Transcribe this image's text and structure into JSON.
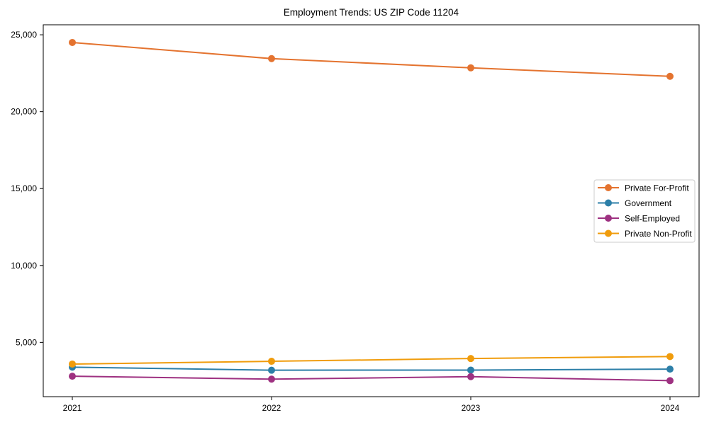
{
  "chart_data": {
    "type": "line",
    "title": "Employment Trends: US ZIP Code 11204",
    "xlabel": "",
    "ylabel": "",
    "grid": false,
    "legend_position": "center-right inside plot",
    "x": [
      2021,
      2022,
      2023,
      2024
    ],
    "x_tick_labels": [
      "2021",
      "2022",
      "2023",
      "2024"
    ],
    "y_ticks": [
      5000,
      10000,
      15000,
      20000,
      25000
    ],
    "y_tick_labels": [
      "5,000",
      "10,000",
      "15,000",
      "20,000",
      "25,000"
    ],
    "ylim": [
      1470,
      25650
    ],
    "series": [
      {
        "name": "Private For-Profit",
        "color": "#e4732f",
        "values": [
          24500,
          23450,
          22850,
          22300
        ]
      },
      {
        "name": "Government",
        "color": "#2c7fa8",
        "values": [
          3390,
          3190,
          3200,
          3260
        ]
      },
      {
        "name": "Self-Employed",
        "color": "#9e3181",
        "values": [
          2800,
          2610,
          2770,
          2510
        ]
      },
      {
        "name": "Private Non-Profit",
        "color": "#f09c0c",
        "values": [
          3590,
          3770,
          3950,
          4080
        ]
      }
    ],
    "axis_color": "#000000",
    "legend_border_color": "#cccccc"
  }
}
